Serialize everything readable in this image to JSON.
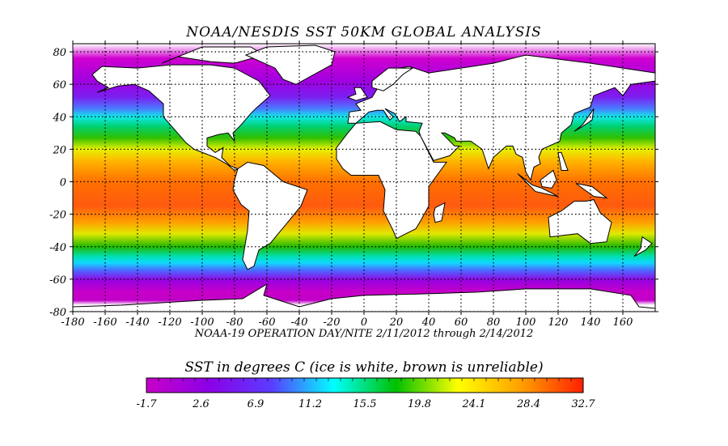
{
  "title": "NOAA/NESDIS SST 50KM GLOBAL ANALYSIS",
  "subtitle": "NOAA-19 OPERATION DAY/NITE  2/11/2012 through 2/14/2012",
  "map": {
    "projection": "equirectangular",
    "lon_range": [
      -180,
      180
    ],
    "lat_range": [
      -80,
      85
    ],
    "lat_ticks": [
      "80",
      "60",
      "40",
      "20",
      "0",
      "-20",
      "-40",
      "-60",
      "-80"
    ],
    "lat_tick_values": [
      80,
      60,
      40,
      20,
      0,
      -20,
      -40,
      -60,
      -80
    ],
    "lon_ticks": [
      "-180",
      "-160",
      "-140",
      "-120",
      "-100",
      "-80",
      "-60",
      "-40",
      "-20",
      "0",
      "20",
      "40",
      "60",
      "80",
      "100",
      "120",
      "140",
      "160"
    ],
    "lon_tick_values": [
      -180,
      -160,
      -140,
      -120,
      -100,
      -80,
      -60,
      -40,
      -20,
      0,
      20,
      40,
      60,
      80,
      100,
      120,
      140,
      160
    ],
    "grid": "dotted",
    "land_color": "#ffffff",
    "coast_color": "#000000"
  },
  "colorbar": {
    "title": "SST in degrees C (ice is white, brown is unreliable)",
    "labels": [
      "-1.7",
      "2.6",
      "6.9",
      "11.2",
      "15.5",
      "19.8",
      "24.1",
      "28.4",
      "32.7"
    ],
    "colors": [
      "#c800c8",
      "#8c00e6",
      "#5a3cff",
      "#00ffff",
      "#00c000",
      "#ffff00",
      "#ffa000",
      "#ff2000"
    ]
  }
}
